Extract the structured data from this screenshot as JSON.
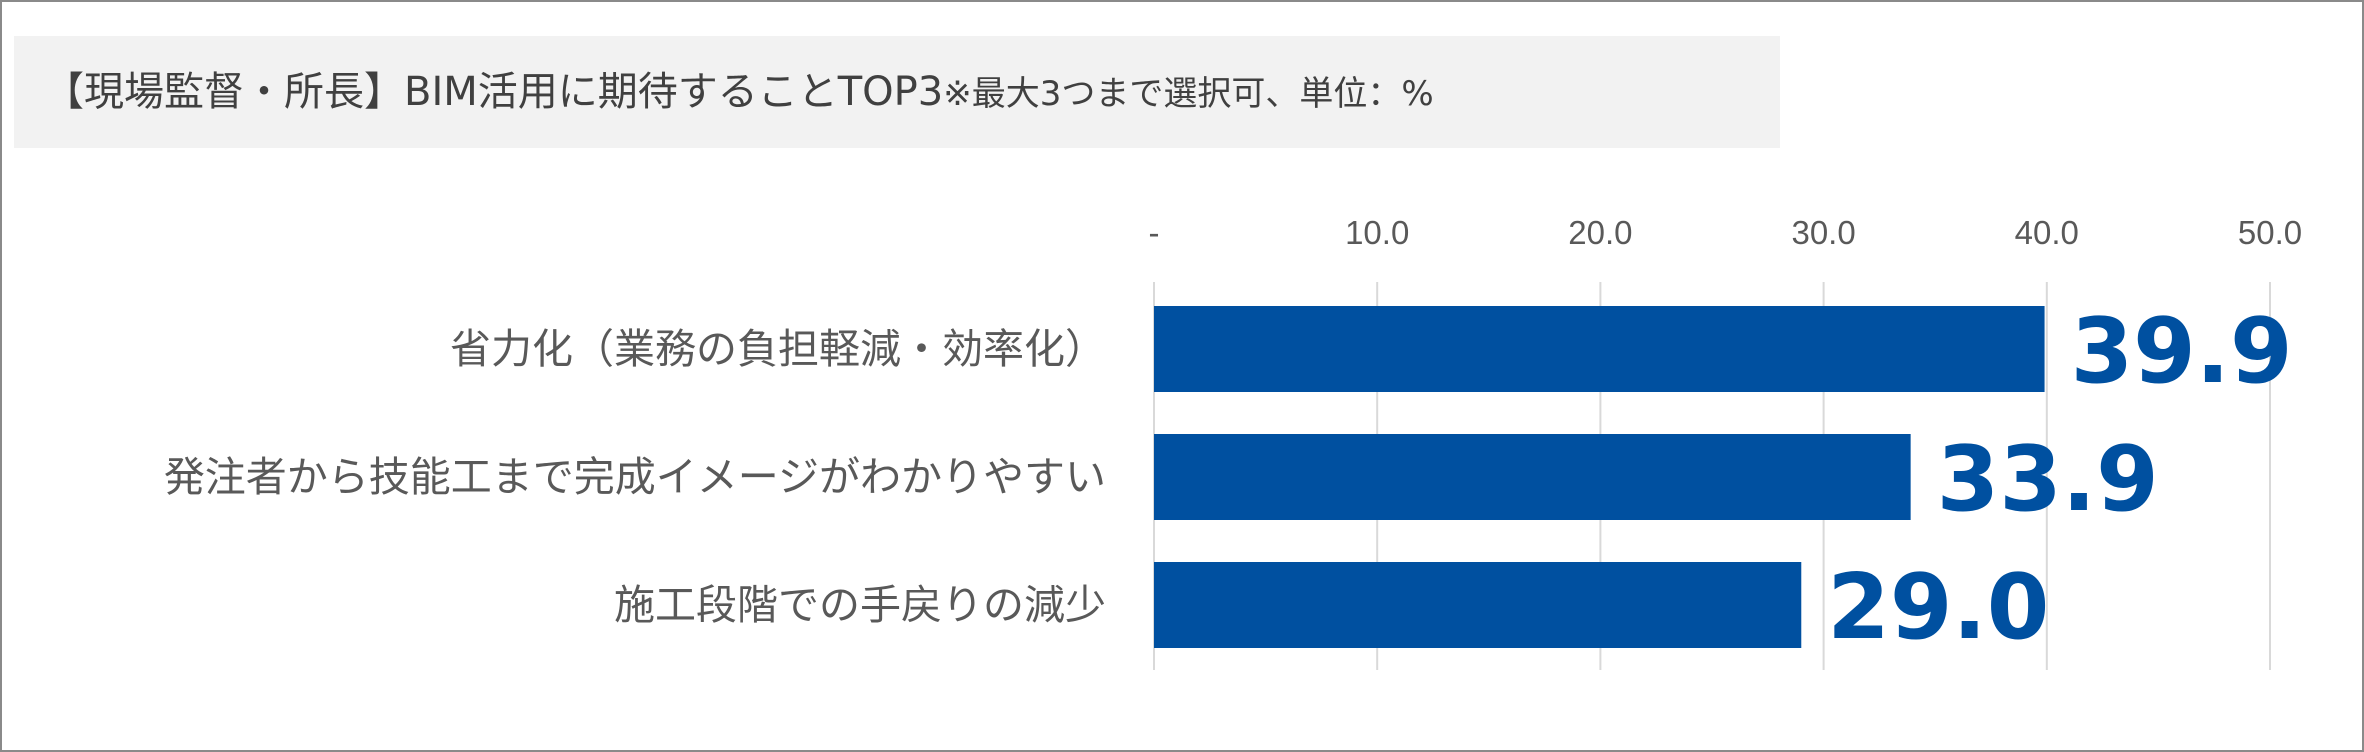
{
  "title": {
    "main": "【現場監督・所長】BIM活用に期待することTOP3",
    "note": "※最大3つまで選択可、単位：%"
  },
  "colors": {
    "bar": "#0050a0",
    "value_label": "#0050a0",
    "grid": "#d9d9d9",
    "title_background": "#f2f2f2"
  },
  "chart_data": {
    "type": "bar",
    "orientation": "horizontal",
    "categories": [
      "省力化（業務の負担軽減・効率化）",
      "発注者から技能工まで完成イメージがわかりやすい",
      "施工段階での手戻りの減少"
    ],
    "values": [
      39.9,
      33.9,
      29.0
    ],
    "value_labels": [
      "39.9",
      "33.9",
      "29.0"
    ],
    "xlim": [
      0,
      50
    ],
    "ticks": [
      0,
      10,
      20,
      30,
      40,
      50
    ],
    "tick_labels": [
      "-",
      "10.0",
      "20.0",
      "30.0",
      "40.0",
      "50.0"
    ],
    "axis_position": "top",
    "grid": true,
    "legend": "none"
  }
}
